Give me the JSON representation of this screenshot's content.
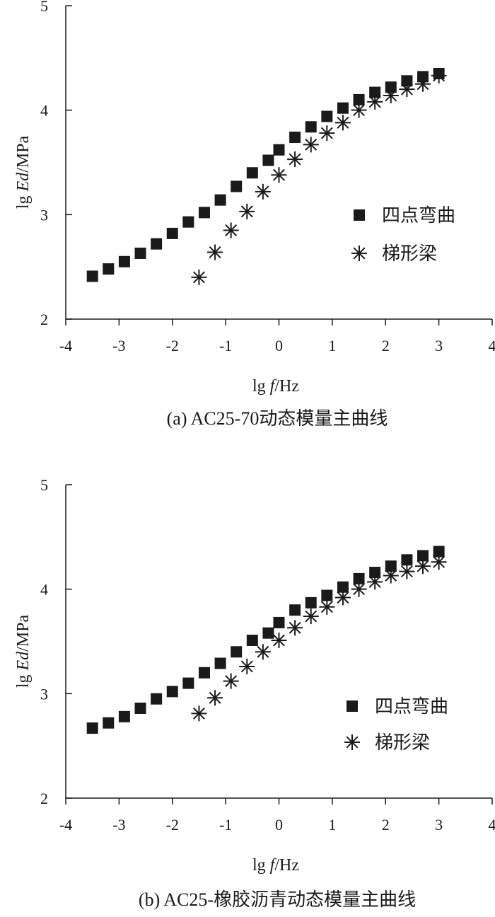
{
  "chart_data": [
    {
      "type": "scatter",
      "caption": "(a) AC25-70动态模量主曲线",
      "xlabel": {
        "prefix": "lg ",
        "var": "f",
        "unit": "/Hz"
      },
      "ylabel": {
        "prefix": "lg ",
        "var": "Ed",
        "unit": "/MPa"
      },
      "xlim": [
        -4,
        4
      ],
      "ylim": [
        2,
        5
      ],
      "xticks": [
        "-4",
        "-3",
        "-2",
        "-1",
        "0",
        "1",
        "2",
        "3",
        "4"
      ],
      "yticks": [
        "2",
        "3",
        "4",
        "5"
      ],
      "legend_position": "right",
      "series": [
        {
          "name": "四点弯曲",
          "marker": "square",
          "x": [
            -3.5,
            -3.2,
            -2.9,
            -2.6,
            -2.3,
            -2.0,
            -1.7,
            -1.4,
            -1.1,
            -0.8,
            -0.5,
            -0.2,
            0.0,
            0.3,
            0.6,
            0.9,
            1.2,
            1.5,
            1.8,
            2.1,
            2.4,
            2.7,
            3.0
          ],
          "y": [
            2.41,
            2.48,
            2.55,
            2.63,
            2.72,
            2.82,
            2.93,
            3.02,
            3.14,
            3.27,
            3.4,
            3.52,
            3.62,
            3.74,
            3.84,
            3.94,
            4.02,
            4.1,
            4.17,
            4.22,
            4.28,
            4.32,
            4.35
          ]
        },
        {
          "name": "梯形梁",
          "marker": "asterisk",
          "x": [
            -1.5,
            -1.2,
            -0.9,
            -0.6,
            -0.3,
            0.0,
            0.3,
            0.6,
            0.9,
            1.2,
            1.5,
            1.8,
            2.1,
            2.4,
            2.7,
            3.0
          ],
          "y": [
            2.4,
            2.64,
            2.85,
            3.03,
            3.22,
            3.38,
            3.53,
            3.67,
            3.78,
            3.88,
            4.0,
            4.08,
            4.14,
            4.2,
            4.25,
            4.33
          ]
        }
      ]
    },
    {
      "type": "scatter",
      "caption": "(b) AC25-橡胶沥青动态模量主曲线",
      "xlabel": {
        "prefix": "lg ",
        "var": "f",
        "unit": "/Hz"
      },
      "ylabel": {
        "prefix": "lg ",
        "var": "Ed",
        "unit": "/MPa"
      },
      "xlim": [
        -4,
        4
      ],
      "ylim": [
        2,
        5
      ],
      "xticks": [
        "-4",
        "-3",
        "-2",
        "-1",
        "0",
        "1",
        "2",
        "3",
        "4"
      ],
      "yticks": [
        "2",
        "3",
        "4",
        "5"
      ],
      "legend_position": "right",
      "series": [
        {
          "name": "四点弯曲",
          "marker": "square",
          "x": [
            -3.5,
            -3.2,
            -2.9,
            -2.6,
            -2.3,
            -2.0,
            -1.7,
            -1.4,
            -1.1,
            -0.8,
            -0.5,
            -0.2,
            0.0,
            0.3,
            0.6,
            0.9,
            1.2,
            1.5,
            1.8,
            2.1,
            2.4,
            2.7,
            3.0
          ],
          "y": [
            2.67,
            2.72,
            2.78,
            2.86,
            2.95,
            3.02,
            3.1,
            3.2,
            3.29,
            3.4,
            3.51,
            3.58,
            3.68,
            3.8,
            3.87,
            3.94,
            4.02,
            4.1,
            4.16,
            4.22,
            4.28,
            4.32,
            4.36
          ]
        },
        {
          "name": "梯形梁",
          "marker": "asterisk",
          "x": [
            -1.5,
            -1.2,
            -0.9,
            -0.6,
            -0.3,
            0.0,
            0.3,
            0.6,
            0.9,
            1.2,
            1.5,
            1.8,
            2.1,
            2.4,
            2.7,
            3.0
          ],
          "y": [
            2.81,
            2.96,
            3.12,
            3.26,
            3.4,
            3.51,
            3.63,
            3.74,
            3.83,
            3.92,
            4.0,
            4.07,
            4.13,
            4.17,
            4.22,
            4.26
          ]
        }
      ]
    }
  ]
}
